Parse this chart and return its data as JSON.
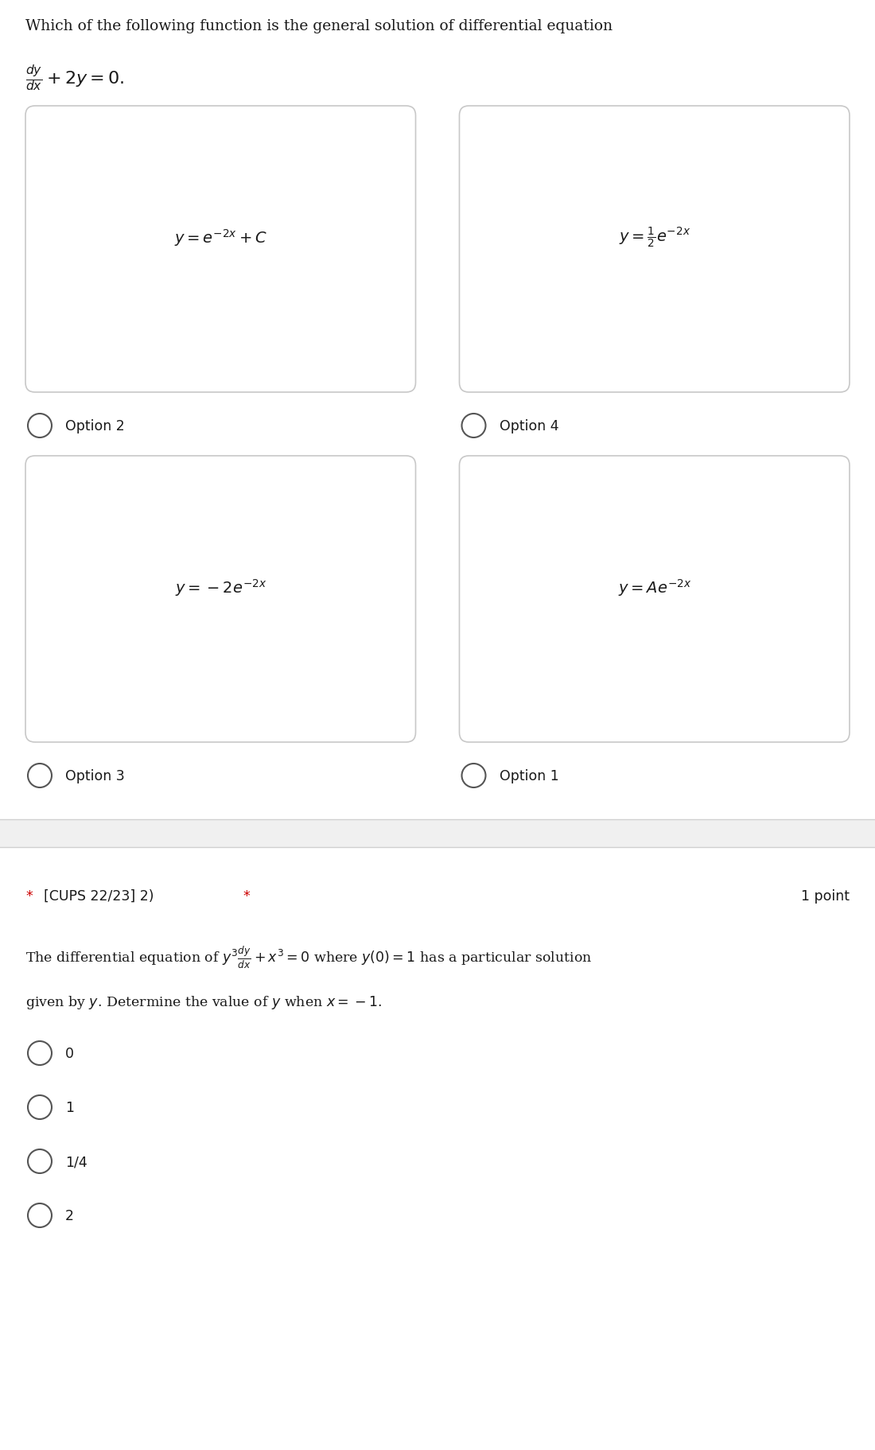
{
  "bg_color": "#ffffff",
  "title_line1": "Which of the following function is the general solution of differential equation",
  "title_eq": "$\\frac{dy}{dx}+2y=0.$",
  "option_box1_eq": "$y=e^{-2x}+C$",
  "option_box1_label": "Option 2",
  "option_box2_eq": "$y=\\frac{1}{2}e^{-2x}$",
  "option_box2_label": "Option 4",
  "option_box3_eq": "$y=-2e^{-2x}$",
  "option_box3_label": "Option 3",
  "option_box4_eq": "$y=Ae^{-2x}$",
  "option_box4_label": "Option 1",
  "separator_color": "#d0d0d0",
  "separator_bg": "#f0f0f0",
  "q2_header_star_color": "#cc0000",
  "q2_points": "1 point",
  "q2_text_line1": "The differential equation of $y^3\\frac{dy}{dx}+x^3=0$ where $y(0)=1$ has a particular solution",
  "q2_text_line2": "given by $y$. Determine the value of $y$ when $x=-1$.",
  "q2_options": [
    "0",
    "1",
    "1/4",
    "2"
  ],
  "font_color": "#1a1a1a",
  "box_border_color": "#c8c8c8",
  "box_bg_color": "#ffffff",
  "page_bg": "#f5f5f5",
  "title_fontsize": 13.5,
  "eq_fontsize": 14,
  "label_fontsize": 12.5,
  "q2_fontsize": 12.5
}
